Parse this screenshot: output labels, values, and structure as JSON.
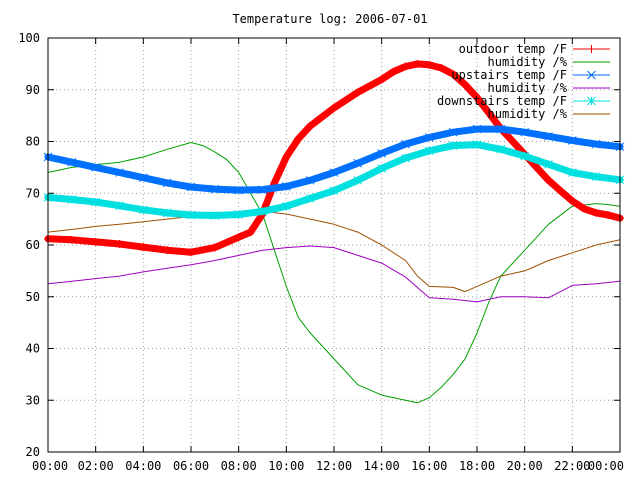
{
  "chart_data": {
    "type": "line",
    "title": "Temperature log: 2006-07-01",
    "xlabel": "",
    "ylabel": "",
    "xlim": [
      0,
      24
    ],
    "ylim": [
      20,
      100
    ],
    "x_ticks": [
      "00:00",
      "02:00",
      "04:00",
      "06:00",
      "08:00",
      "10:00",
      "12:00",
      "14:00",
      "16:00",
      "18:00",
      "20:00",
      "22:00",
      "00:00"
    ],
    "y_ticks": [
      "20",
      "30",
      "40",
      "50",
      "60",
      "70",
      "80",
      "90",
      "100"
    ],
    "grid": true,
    "legend_position": "top-right",
    "series": [
      {
        "name": "outdoor temp /F",
        "color": "#ff0000",
        "marker": "plus",
        "x": [
          0,
          1,
          2,
          3,
          4,
          5,
          6,
          7,
          8,
          8.5,
          9,
          9.5,
          10,
          10.5,
          11,
          12,
          13,
          14,
          14.5,
          15,
          15.5,
          16,
          16.5,
          17,
          17.5,
          18,
          18.5,
          19,
          19.5,
          20,
          20.5,
          21,
          21.5,
          22,
          22.5,
          23,
          23.5,
          24
        ],
        "y": [
          61.2,
          61,
          60.6,
          60.2,
          59.6,
          59,
          58.6,
          59.5,
          61.5,
          62.5,
          66,
          72,
          77,
          80.5,
          83,
          86.5,
          89.5,
          92,
          93.5,
          94.5,
          95,
          94.8,
          94.2,
          93,
          91,
          88.5,
          85.5,
          82.5,
          80,
          77.5,
          75,
          72.5,
          70.5,
          68.5,
          67,
          66.2,
          65.8,
          65.2
        ]
      },
      {
        "name": "humidity /%",
        "color": "#00a000",
        "x": [
          0,
          1,
          2,
          3,
          4,
          5,
          6,
          6.5,
          7,
          7.5,
          8,
          8.5,
          9,
          9.5,
          10,
          10.5,
          11,
          12,
          13,
          14,
          15,
          15.5,
          16,
          16.5,
          17,
          17.5,
          18,
          18.5,
          19,
          20,
          21,
          22,
          23,
          23.5,
          24
        ],
        "y": [
          74,
          75,
          75.5,
          76,
          77,
          78.5,
          79.8,
          79.2,
          78,
          76.5,
          74,
          70,
          66,
          59,
          52,
          46,
          43,
          38,
          33,
          31,
          30,
          29.5,
          30.5,
          32.5,
          35,
          38,
          43,
          49,
          54,
          59,
          64,
          67.5,
          68,
          67.8,
          67.5
        ]
      },
      {
        "name": "upstairs temp /F",
        "color": "#0070ff",
        "marker": "cross",
        "x": [
          0,
          1,
          2,
          3,
          4,
          5,
          6,
          7,
          8,
          9,
          10,
          11,
          12,
          13,
          14,
          15,
          16,
          17,
          18,
          19,
          20,
          21,
          22,
          23,
          24
        ],
        "y": [
          77,
          76,
          75,
          74,
          73,
          72,
          71.2,
          70.8,
          70.6,
          70.7,
          71.3,
          72.5,
          74,
          75.8,
          77.7,
          79.5,
          80.8,
          81.8,
          82.4,
          82.4,
          81.8,
          81,
          80.2,
          79.5,
          79
        ]
      },
      {
        "name": "humidity /%",
        "color": "#a000c0",
        "x": [
          0,
          1,
          2,
          3,
          4,
          5,
          6,
          7,
          8,
          9,
          10,
          11,
          12,
          13,
          14,
          15,
          16,
          17,
          18,
          19,
          20,
          21,
          22,
          23,
          24
        ],
        "y": [
          52.5,
          53,
          53.5,
          54,
          54.8,
          55.5,
          56.2,
          57,
          58,
          59,
          59.5,
          59.8,
          59.5,
          58,
          56.5,
          53.8,
          49.8,
          49.5,
          49,
          50,
          50,
          49.8,
          52.2,
          52.5,
          53
        ]
      },
      {
        "name": "downstairs temp /F",
        "color": "#00e0e0",
        "marker": "star",
        "x": [
          0,
          1,
          2,
          3,
          4,
          5,
          6,
          7,
          8,
          9,
          10,
          11,
          12,
          13,
          14,
          15,
          16,
          17,
          18,
          19,
          20,
          21,
          22,
          23,
          24
        ],
        "y": [
          69.2,
          68.8,
          68.3,
          67.6,
          66.8,
          66.2,
          65.8,
          65.7,
          65.9,
          66.5,
          67.5,
          69,
          70.5,
          72.5,
          74.8,
          76.8,
          78.2,
          79.2,
          79.4,
          78.5,
          77.2,
          75.6,
          74,
          73.2,
          72.6
        ]
      },
      {
        "name": "humidity /%",
        "color": "#a05000",
        "x": [
          0,
          1,
          2,
          3,
          4,
          5,
          6,
          7,
          8,
          9,
          10,
          11,
          12,
          13,
          14,
          15,
          15.5,
          16,
          17,
          17.5,
          18,
          19,
          20,
          21,
          22,
          23,
          24
        ],
        "y": [
          62.5,
          63,
          63.6,
          64,
          64.5,
          65,
          65.5,
          65.8,
          66.1,
          66.5,
          66,
          65,
          64,
          62.5,
          60,
          57,
          54,
          52,
          51.8,
          51,
          52,
          54,
          55,
          57,
          58.5,
          60,
          61
        ]
      }
    ]
  }
}
